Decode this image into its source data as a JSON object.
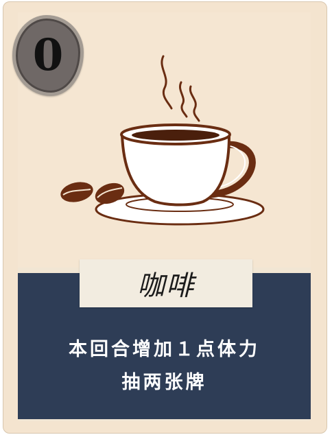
{
  "card": {
    "cost": "0",
    "name": "咖啡",
    "effect_lines": [
      "本回合增加１点体力",
      "抽两张牌"
    ],
    "illustration": {
      "icons": [
        "coffee-cup-icon",
        "saucer-icon",
        "steam-icon",
        "coffee-bean-icon"
      ]
    },
    "colors": {
      "card_bg": "#f4e4cf",
      "panel_bg": "#2e3d56",
      "name_plate": "#f2ece0",
      "coffee_brown": "#6a2d12",
      "cost_badge": "#6f6866"
    }
  }
}
